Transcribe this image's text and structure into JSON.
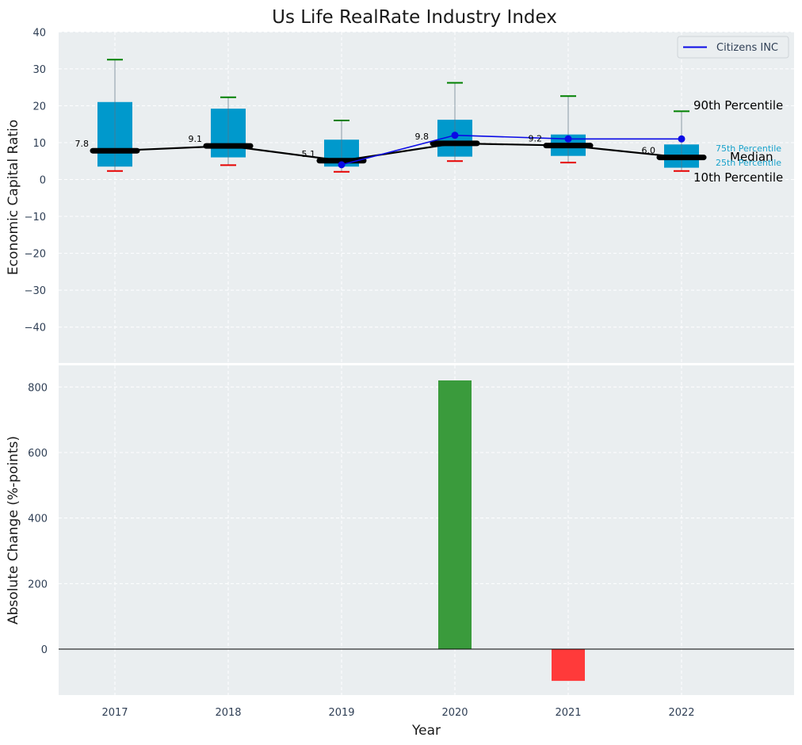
{
  "chart_data": [
    {
      "type": "box",
      "title": "Us Life RealRate Industry Index",
      "ylabel": "Economic Capital Ratio",
      "ylim": [
        -50,
        40
      ],
      "yticks": [
        40,
        30,
        20,
        10,
        0,
        -10,
        -20,
        -30,
        -40
      ],
      "yticklabels": [
        "40",
        "30",
        "20",
        "10",
        "0",
        "−10",
        "−20",
        "−30",
        "−40"
      ],
      "categories": [
        "2017",
        "2018",
        "2019",
        "2020",
        "2021",
        "2022"
      ],
      "grid": true,
      "legend_placement": "top-right",
      "boxes": [
        {
          "year": "2017",
          "p10": 2.3,
          "p25": 3.5,
          "median": 7.8,
          "p75": 21.0,
          "p90": 32.5,
          "median_label": "7.8"
        },
        {
          "year": "2018",
          "p10": 3.9,
          "p25": 6.0,
          "median": 9.1,
          "p75": 19.2,
          "p90": 22.3,
          "median_label": "9.1"
        },
        {
          "year": "2019",
          "p10": 2.1,
          "p25": 3.5,
          "median": 5.1,
          "p75": 10.8,
          "p90": 16.0,
          "median_label": "5.1"
        },
        {
          "year": "2020",
          "p10": 5.0,
          "p25": 6.2,
          "median": 9.8,
          "p75": 16.2,
          "p90": 26.2,
          "median_label": "9.8"
        },
        {
          "year": "2021",
          "p10": 4.6,
          "p25": 6.4,
          "median": 9.2,
          "p75": 12.2,
          "p90": 22.6,
          "median_label": "9.2"
        },
        {
          "year": "2022",
          "p10": 2.3,
          "p25": 3.2,
          "median": 6.0,
          "p75": 9.5,
          "p90": 18.5,
          "median_label": "6.0"
        }
      ],
      "series": [
        {
          "name": "Citizens INC",
          "x": [
            "2019",
            "2020",
            "2021",
            "2022"
          ],
          "values": [
            4.0,
            12.0,
            11.0,
            11.0
          ],
          "color": "#0a0ae6"
        }
      ],
      "annotations": {
        "p90": "90th Percentile",
        "p75": "75th Percentile",
        "median": "Median",
        "p25": "25th Percentile",
        "p10": "10th Percentile"
      },
      "colors": {
        "box": "#0099cc",
        "median": "#000000",
        "p90_cap": "#008000",
        "p10_cap": "#e60000",
        "annotation_small": "#1aa3cc"
      }
    },
    {
      "type": "bar",
      "ylabel": "Absolute Change (%-points)",
      "xlabel": "Year",
      "ylim": [
        -140,
        870
      ],
      "yticks": [
        800,
        600,
        400,
        200,
        0
      ],
      "yticklabels": [
        "800",
        "600",
        "400",
        "200",
        "0"
      ],
      "categories": [
        "2017",
        "2018",
        "2019",
        "2020",
        "2021",
        "2022"
      ],
      "values": [
        null,
        null,
        null,
        820,
        -97,
        null
      ],
      "grid": true,
      "colors": {
        "positive": "#3a9b3c",
        "negative": "#ff3a3a"
      }
    }
  ]
}
